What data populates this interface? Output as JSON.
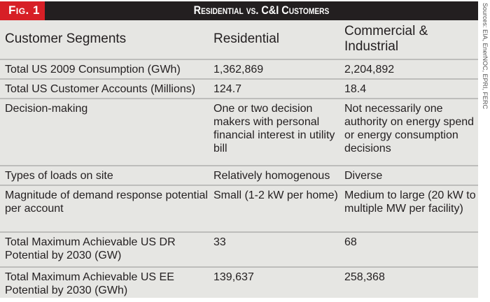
{
  "figure_label": "Fig. 1",
  "title": "Residential vs. C&I Customers",
  "source": "Sources: EIA, EnerNOC, EPRI, FERC",
  "headers": [
    "Customer Segments",
    "Residential",
    "Commercial & Industrial"
  ],
  "rows": [
    [
      "Total US 2009 Consumption (GWh)",
      "1,362,869",
      "2,204,892"
    ],
    [
      "Total US Customer Accounts (Millions)",
      "124.7",
      "18.4"
    ],
    [
      "Decision-making",
      "One or two decision makers with personal financial interest in utility bill",
      "Not necessarily one authority on energy spend or energy consumption decisions"
    ],
    [
      "Types of loads on site",
      "Relatively homogenous",
      "Diverse"
    ],
    [
      "Magnitude of demand response potential per account",
      "Small (1-2 kW per home)",
      "Medium to large (20 kW to multiple MW per facility)"
    ],
    [
      "Total Maximum Achievable US DR Potential by 2030 (GW)",
      "33",
      "68"
    ],
    [
      "Total Maximum Achievable US EE Potential by 2030 (GWh)",
      "139,637",
      "258,368"
    ]
  ]
}
